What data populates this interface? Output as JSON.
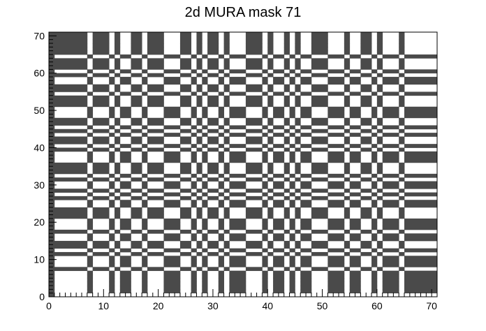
{
  "chart_data": {
    "type": "heatmap",
    "title": "2d MURA mask 71",
    "xlabel": "",
    "ylabel": "",
    "xlim": [
      0,
      71
    ],
    "ylim": [
      0,
      71
    ],
    "x_ticks": [
      0,
      10,
      20,
      30,
      40,
      50,
      60,
      70
    ],
    "y_ticks": [
      0,
      10,
      20,
      30,
      40,
      50,
      60,
      70
    ],
    "grid": false,
    "mask_order": 71,
    "open_color": "#ffffff",
    "closed_color": "#4a4a4a"
  }
}
